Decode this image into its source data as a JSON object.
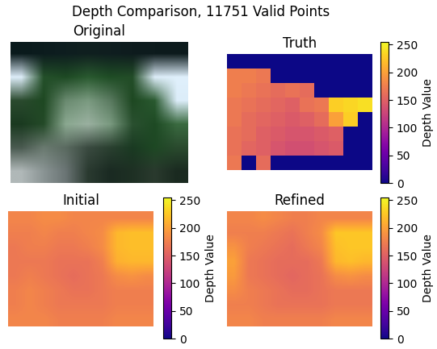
{
  "title": "Depth Comparison, 11751 Valid Points",
  "chart_data": [
    {
      "type": "image",
      "title": "Original",
      "tick_labels": false,
      "cells": [
        [
          "#0a1a1c",
          "#0c1c1e",
          "#0e1e20",
          "#10201f",
          "#0f1e20",
          "#0e1c1e",
          "#0d1b1d",
          "#0c1a1c"
        ],
        [
          "#dcecf8",
          "#24502a",
          "#1e4a24",
          "#2a5a30",
          "#1f4d25",
          "#234d28",
          "#dcecf8",
          "#e0f0fc"
        ],
        [
          "#2a4a2e",
          "#1e4822",
          "#6a8a70",
          "#7a9a80",
          "#5a7a60",
          "#1e4822",
          "#2a5a30",
          "#dcedf9"
        ],
        [
          "#1a3a20",
          "#244a28",
          "#8aa890",
          "#9ab0a0",
          "#7a9a80",
          "#2a5030",
          "#1e4a24",
          "#3a6a40"
        ],
        [
          "#4a5a50",
          "#6a7a70",
          "#5a6a60",
          "#3a4a40",
          "#2a4030",
          "#1a3a22",
          "#1e4824",
          "#2a4a2e"
        ],
        [
          "#b0b8b8",
          "#8a9494",
          "#6a7474",
          "#2a3a30",
          "#1a2a22",
          "#1e3024",
          "#2a3a2e",
          "#1a2a20"
        ]
      ]
    },
    {
      "type": "heatmap",
      "title": "Truth",
      "tick_labels": false,
      "color": "plasma",
      "colorbar_label": "Depth Value",
      "color_range": [
        0,
        255
      ],
      "color_ticks": [
        0,
        50,
        100,
        150,
        200,
        250
      ],
      "cells": [
        [
          0,
          0,
          0,
          0,
          0,
          0,
          0,
          0,
          0,
          0
        ],
        [
          175,
          175,
          170,
          0,
          0,
          0,
          0,
          0,
          0,
          0
        ],
        [
          175,
          170,
          165,
          160,
          165,
          160,
          0,
          0,
          0,
          0
        ],
        [
          170,
          165,
          160,
          155,
          150,
          165,
          170,
          230,
          235,
          240
        ],
        [
          170,
          160,
          155,
          150,
          145,
          150,
          160,
          200,
          230,
          0
        ],
        [
          165,
          160,
          150,
          145,
          140,
          140,
          145,
          150,
          0,
          0
        ],
        [
          165,
          155,
          150,
          140,
          135,
          135,
          140,
          145,
          0,
          0
        ],
        [
          170,
          0,
          160,
          0,
          0,
          0,
          0,
          0,
          0,
          0
        ]
      ]
    },
    {
      "type": "heatmap",
      "title": "Initial",
      "tick_labels": false,
      "color": "plasma",
      "colorbar_label": "Depth Value",
      "color_range": [
        0,
        255
      ],
      "color_ticks": [
        0,
        50,
        100,
        150,
        200,
        250
      ],
      "cells": [
        [
          180,
          180,
          185,
          185,
          180,
          180,
          180,
          180,
          180,
          180
        ],
        [
          175,
          175,
          180,
          175,
          175,
          180,
          185,
          215,
          220,
          220
        ],
        [
          170,
          175,
          175,
          170,
          170,
          175,
          185,
          215,
          220,
          220
        ],
        [
          170,
          170,
          170,
          165,
          165,
          165,
          175,
          210,
          215,
          215
        ],
        [
          170,
          175,
          170,
          165,
          160,
          165,
          170,
          185,
          190,
          185
        ],
        [
          175,
          180,
          175,
          170,
          165,
          165,
          170,
          175,
          175,
          175
        ],
        [
          175,
          180,
          175,
          170,
          170,
          170,
          170,
          175,
          175,
          175
        ],
        [
          180,
          180,
          180,
          175,
          175,
          175,
          175,
          180,
          180,
          180
        ]
      ]
    },
    {
      "type": "heatmap",
      "title": "Refined",
      "tick_labels": false,
      "color": "plasma",
      "colorbar_label": "Depth Value",
      "color_range": [
        0,
        255
      ],
      "color_ticks": [
        0,
        50,
        100,
        150,
        200,
        250
      ],
      "cells": [
        [
          180,
          180,
          185,
          180,
          175,
          175,
          180,
          180,
          180,
          180
        ],
        [
          175,
          175,
          175,
          170,
          165,
          175,
          185,
          225,
          225,
          225
        ],
        [
          190,
          175,
          170,
          165,
          160,
          170,
          180,
          220,
          225,
          225
        ],
        [
          200,
          170,
          165,
          160,
          160,
          160,
          170,
          215,
          220,
          215
        ],
        [
          195,
          170,
          165,
          160,
          155,
          160,
          165,
          185,
          190,
          185
        ],
        [
          185,
          175,
          170,
          165,
          160,
          160,
          165,
          170,
          170,
          170
        ],
        [
          175,
          175,
          170,
          165,
          165,
          165,
          165,
          170,
          170,
          170
        ],
        [
          180,
          180,
          175,
          175,
          175,
          175,
          175,
          180,
          180,
          180
        ]
      ]
    }
  ]
}
